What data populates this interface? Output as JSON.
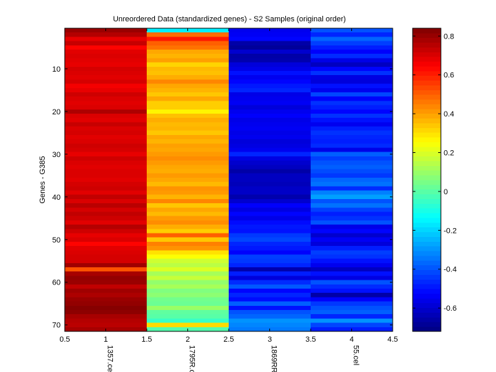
{
  "chart_data": {
    "type": "heatmap",
    "title": "Unreordered Data (standardized genes) - S2 Samples (original order)",
    "xlabel": "",
    "ylabel": "Genes - G385",
    "xlim": [
      0.5,
      4.5
    ],
    "ylim": [
      0.5,
      71.5
    ],
    "x_ticks": [
      0.5,
      1,
      1.5,
      2,
      2.5,
      3,
      3.5,
      4,
      4.5
    ],
    "y_ticks": [
      10,
      20,
      30,
      40,
      50,
      60,
      70
    ],
    "sample_labels": [
      "1357.cel",
      "1795R.c",
      "1869RR",
      "55.cel"
    ],
    "colormap": "jet",
    "colorbar": {
      "range": [
        -0.72,
        0.84
      ],
      "ticks": [
        -0.6,
        -0.4,
        -0.2,
        0,
        0.2,
        0.4,
        0.6,
        0.8
      ]
    },
    "columns": [
      {
        "sample": "1357.cel",
        "values": [
          0.8,
          0.76,
          0.68,
          0.73,
          0.64,
          0.69,
          0.7,
          0.69,
          0.68,
          0.71,
          0.7,
          0.69,
          0.71,
          0.66,
          0.68,
          0.72,
          0.7,
          0.69,
          0.7,
          0.77,
          0.7,
          0.69,
          0.73,
          0.7,
          0.71,
          0.69,
          0.7,
          0.72,
          0.71,
          0.68,
          0.72,
          0.7,
          0.69,
          0.7,
          0.7,
          0.69,
          0.71,
          0.72,
          0.69,
          0.74,
          0.7,
          0.75,
          0.71,
          0.74,
          0.72,
          0.69,
          0.76,
          0.72,
          0.68,
          0.7,
          0.64,
          0.69,
          0.7,
          0.71,
          0.71,
          0.79,
          0.52,
          0.78,
          0.81,
          0.8,
          0.74,
          0.79,
          0.77,
          0.8,
          0.81,
          0.83,
          0.82,
          0.78,
          0.76,
          0.75,
          0.78
        ]
      },
      {
        "sample": "1795R.c",
        "values": [
          -0.16,
          0.48,
          0.61,
          0.5,
          0.47,
          0.39,
          0.37,
          0.4,
          0.32,
          0.36,
          0.35,
          0.38,
          0.44,
          0.39,
          0.37,
          0.34,
          0.39,
          0.33,
          0.33,
          0.27,
          0.35,
          0.38,
          0.36,
          0.37,
          0.34,
          0.39,
          0.37,
          0.4,
          0.39,
          0.41,
          0.43,
          0.41,
          0.39,
          0.38,
          0.41,
          0.39,
          0.36,
          0.42,
          0.41,
          0.37,
          0.44,
          0.34,
          0.39,
          0.36,
          0.41,
          0.43,
          0.38,
          0.33,
          0.5,
          0.34,
          0.45,
          0.42,
          0.3,
          0.25,
          0.18,
          0.15,
          0.2,
          0.12,
          0.17,
          0.09,
          0.12,
          0.06,
          0.08,
          0.04,
          0.03,
          0.1,
          0.01,
          0.0,
          -0.05,
          0.31,
          -0.01
        ]
      },
      {
        "sample": "1869RR",
        "values": [
          -0.55,
          -0.54,
          -0.52,
          -0.66,
          -0.68,
          -0.6,
          -0.66,
          -0.65,
          -0.58,
          -0.56,
          -0.5,
          -0.55,
          -0.52,
          -0.49,
          -0.47,
          -0.56,
          -0.55,
          -0.54,
          -0.58,
          -0.55,
          -0.53,
          -0.56,
          -0.55,
          -0.54,
          -0.56,
          -0.55,
          -0.58,
          -0.57,
          -0.55,
          -0.47,
          -0.57,
          -0.6,
          -0.62,
          -0.66,
          -0.62,
          -0.62,
          -0.63,
          -0.61,
          -0.61,
          -0.65,
          -0.6,
          -0.53,
          -0.57,
          -0.52,
          -0.56,
          -0.51,
          -0.49,
          -0.5,
          -0.44,
          -0.42,
          -0.47,
          -0.49,
          -0.53,
          -0.43,
          -0.44,
          -0.47,
          -0.65,
          -0.48,
          -0.58,
          -0.46,
          -0.39,
          -0.52,
          -0.47,
          -0.51,
          -0.38,
          -0.5,
          -0.4,
          -0.37,
          -0.3,
          -0.32,
          -0.34
        ]
      },
      {
        "sample": "55.cel",
        "values": [
          -0.4,
          -0.47,
          -0.37,
          -0.43,
          -0.48,
          -0.53,
          -0.46,
          -0.56,
          -0.62,
          -0.52,
          -0.45,
          -0.57,
          -0.58,
          -0.5,
          -0.55,
          -0.42,
          -0.53,
          -0.45,
          -0.48,
          -0.52,
          -0.45,
          -0.5,
          -0.55,
          -0.48,
          -0.45,
          -0.47,
          -0.48,
          -0.46,
          -0.56,
          -0.38,
          -0.43,
          -0.4,
          -0.38,
          -0.41,
          -0.44,
          -0.37,
          -0.35,
          -0.46,
          -0.33,
          -0.28,
          -0.4,
          -0.35,
          -0.43,
          -0.48,
          -0.45,
          -0.4,
          -0.56,
          -0.52,
          -0.6,
          -0.54,
          -0.58,
          -0.48,
          -0.43,
          -0.45,
          -0.5,
          -0.55,
          -0.62,
          -0.5,
          -0.57,
          -0.4,
          -0.46,
          -0.5,
          -0.66,
          -0.53,
          -0.44,
          -0.4,
          -0.38,
          -0.47,
          -0.3,
          -0.42,
          -0.48
        ]
      }
    ]
  }
}
